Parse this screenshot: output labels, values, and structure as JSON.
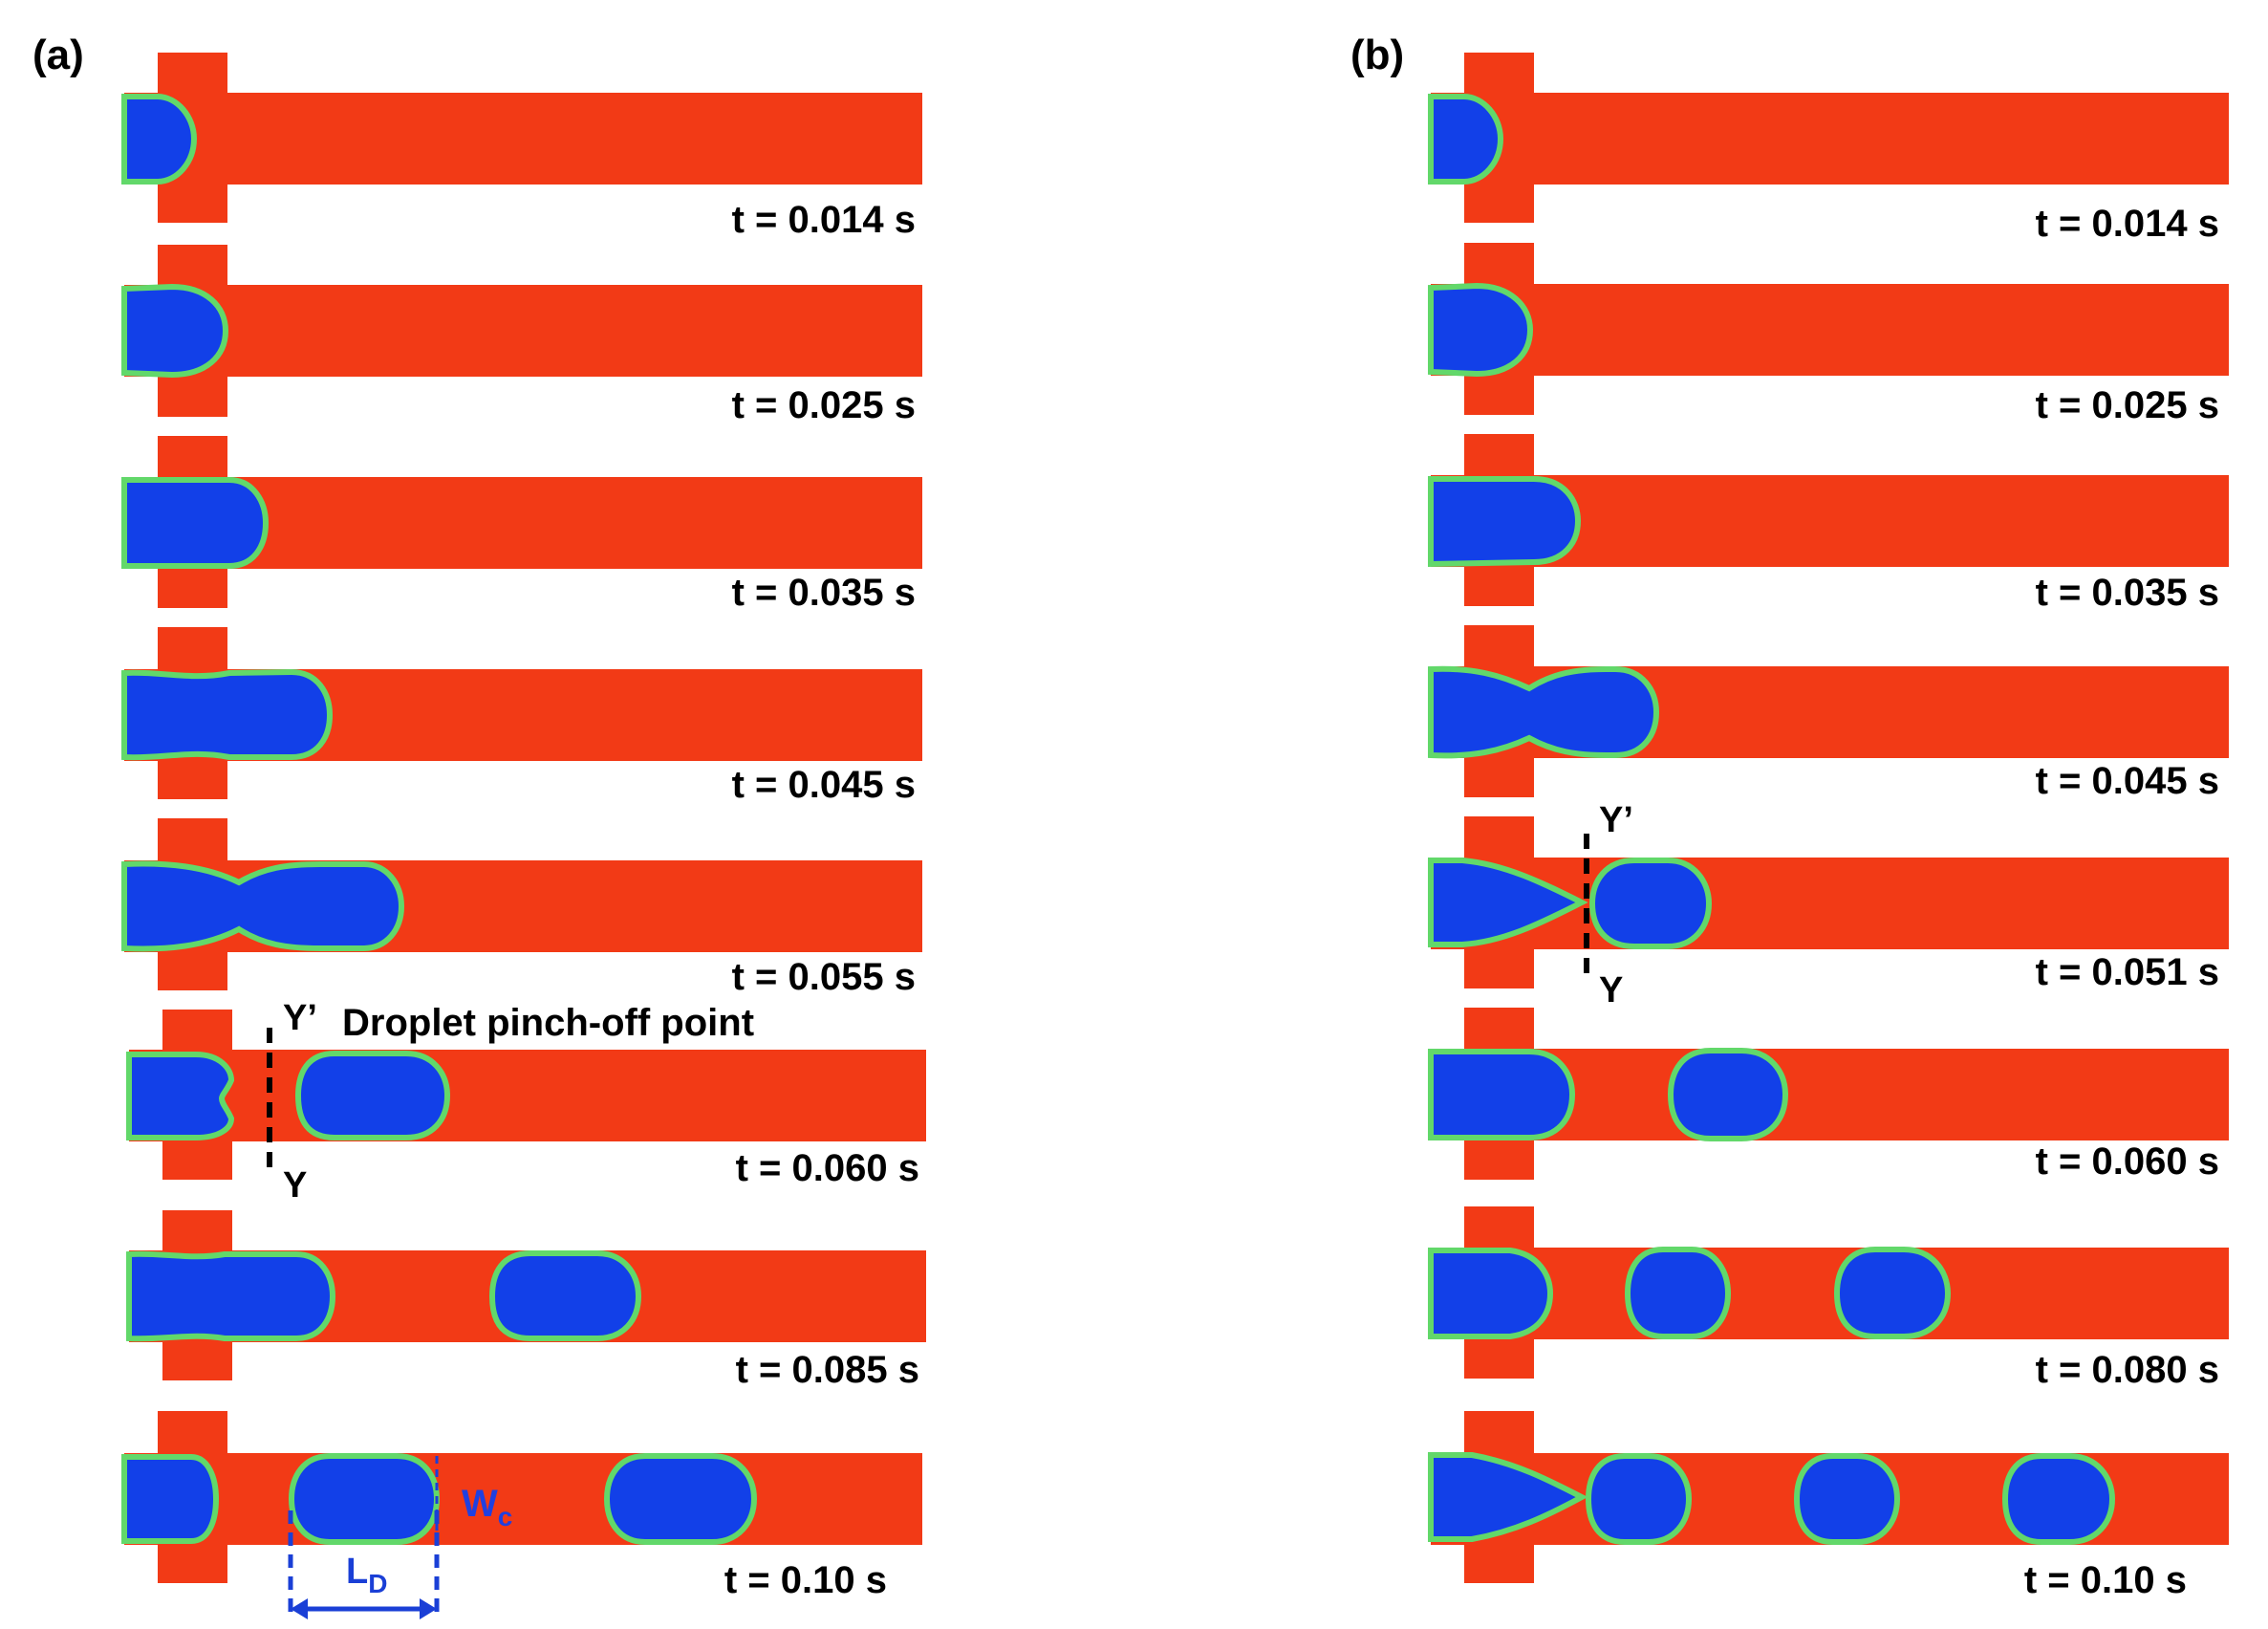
{
  "panels": [
    {
      "label": "(a)",
      "times": [
        "t = 0.014 s",
        "t = 0.025 s",
        "t = 0.035 s",
        "t = 0.045 s",
        "t = 0.055 s",
        "t = 0.060 s",
        "t = 0.085  s",
        "t = 0.10 s"
      ]
    },
    {
      "label": "(b)",
      "times": [
        "t = 0.014 s",
        "t = 0.025 s",
        "t = 0.035 s",
        "t = 0.045 s",
        "t = 0.051 s",
        "t = 0.060 s",
        "t = 0.080 s",
        "t = 0.10 s"
      ]
    }
  ],
  "annotations": {
    "pinch_off": "Droplet pinch-off point",
    "y_prime": "Y’",
    "y": "Y",
    "wc_main": "W",
    "wc_sub": "c",
    "ld_main": "L",
    "ld_sub": "D"
  },
  "colors": {
    "continuous_phase": "#f23a16",
    "dispersed_phase": "#1240e8",
    "interface": "#62d86a",
    "dimension_lines": "#1a3fd6"
  }
}
